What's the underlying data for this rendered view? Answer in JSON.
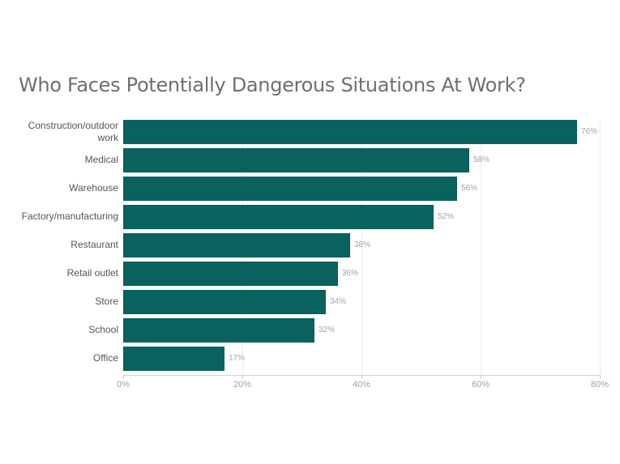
{
  "chart_data": {
    "type": "bar",
    "orientation": "horizontal",
    "title": "Who Faces Potentially Dangerous Situations At Work?",
    "xlabel": "",
    "ylabel": "",
    "categories": [
      "Construction/outdoor work",
      "Medical",
      "Warehouse",
      "Factory/manufacturing",
      "Restaurant",
      "Retail outlet",
      "Store",
      "School",
      "Office"
    ],
    "values": [
      76,
      58,
      56,
      52,
      38,
      36,
      34,
      32,
      17
    ],
    "value_labels": [
      "76%",
      "58%",
      "56%",
      "52%",
      "38%",
      "36%",
      "34%",
      "32%",
      "17%"
    ],
    "xlim": [
      0,
      80
    ],
    "x_ticks": [
      "0%",
      "20%",
      "40%",
      "60%",
      "80%"
    ],
    "grid": true,
    "legend": null,
    "bar_color": "#0a615e"
  },
  "labels": {
    "cat0_line1": "Construction/outdoor",
    "cat0_line2": "work"
  }
}
